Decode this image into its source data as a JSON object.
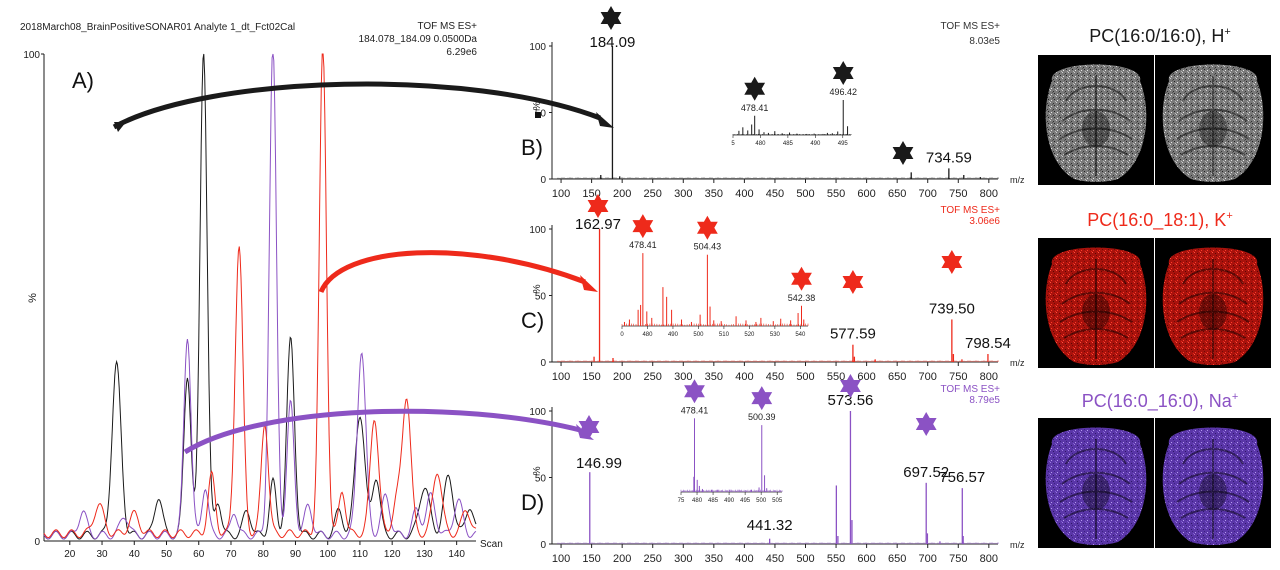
{
  "figure": {
    "labels": {
      "a": "A)",
      "b": "B)",
      "c": "C)",
      "d": "D)"
    },
    "colors": {
      "black": "#1a1a1a",
      "red": "#ee2a1b",
      "purple": "#8b52c4",
      "axis": "#222222"
    }
  },
  "chart_data": [
    {
      "panel": "A",
      "type": "line",
      "header": "2018March08_BrainPositiveSONAR01 Analyte 1_dt_Fct02Cal",
      "info": [
        "TOF MS ES+",
        "184.078_184.09 0.0500Da",
        "6.29e6"
      ],
      "ylabel": "%",
      "xlabel": "Scan",
      "xlim": [
        12,
        146
      ],
      "ylim": [
        0,
        100
      ],
      "xticks": [
        "20",
        "30",
        "40",
        "50",
        "60",
        "70",
        "80",
        "90",
        "100",
        "110",
        "120",
        "130",
        "140"
      ],
      "yticks": [
        "0",
        "100"
      ],
      "series": [
        {
          "color": "black",
          "peaks": [
            [
              34.5,
              35,
              1.4
            ],
            [
              47.5,
              8,
              1.2
            ],
            [
              56.5,
              33,
              1.1
            ],
            [
              61.5,
              100,
              1.1
            ],
            [
              66,
              7,
              1.0
            ],
            [
              75,
              5,
              1.2
            ],
            [
              83,
              11,
              1.0
            ],
            [
              88.5,
              40,
              1.2
            ],
            [
              103.5,
              5,
              1.2
            ],
            [
              110,
              25,
              1.5
            ],
            [
              115,
              12,
              1.2
            ],
            [
              130,
              10,
              1.6
            ],
            [
              137.5,
              12,
              1.5
            ],
            [
              144,
              6,
              1.2
            ]
          ],
          "baseline": 1.2
        },
        {
          "color": "purple",
          "peaks": [
            [
              24,
              5,
              1.2
            ],
            [
              37,
              4,
              1.3
            ],
            [
              56.5,
              41,
              1.1
            ],
            [
              62,
              10,
              1.0
            ],
            [
              71,
              5,
              1.0
            ],
            [
              83,
              100,
              1.1
            ],
            [
              88.5,
              27,
              1.1
            ],
            [
              94,
              6,
              1.2
            ],
            [
              110.5,
              38,
              1.3
            ],
            [
              118,
              8,
              1.3
            ],
            [
              127.5,
              5,
              1.2
            ],
            [
              132,
              8,
              1.4
            ],
            [
              140.5,
              7,
              1.4
            ]
          ],
          "baseline": 1.2
        },
        {
          "color": "red",
          "peaks": [
            [
              29,
              6,
              1.5
            ],
            [
              40,
              4,
              1.5
            ],
            [
              64,
              12,
              1.1
            ],
            [
              72.5,
              59,
              1.2
            ],
            [
              80.5,
              23,
              1.1
            ],
            [
              98.5,
              100,
              1.1
            ],
            [
              104.5,
              9,
              1.0
            ],
            [
              114.5,
              24,
              1.3
            ],
            [
              121.5,
              7,
              1.3
            ],
            [
              124.5,
              28,
              1.3
            ],
            [
              134,
              13,
              1.4
            ],
            [
              143,
              5,
              1.3
            ]
          ],
          "baseline": 1.5
        }
      ]
    },
    {
      "panel": "B",
      "type": "spectrum",
      "info": [
        "TOF MS ES+",
        "8.03e5"
      ],
      "ylabel": "%",
      "xlabel": "m/z",
      "xlim": [
        95,
        815
      ],
      "ylim": [
        0,
        100
      ],
      "xticks": [
        "100",
        "150",
        "200",
        "250",
        "300",
        "350",
        "400",
        "450",
        "500",
        "550",
        "600",
        "650",
        "700",
        "750",
        "800"
      ],
      "yticks": [
        "0",
        "50",
        "100"
      ],
      "peaks": [
        [
          184.09,
          100
        ],
        [
          165,
          3
        ],
        [
          196,
          2
        ],
        [
          673,
          5
        ],
        [
          734.59,
          8
        ],
        [
          759,
          3
        ],
        [
          786,
          1.5
        ]
      ],
      "labels": [
        [
          "184.09",
          184.09,
          null
        ],
        [
          "734.59",
          734.59,
          null
        ]
      ],
      "stars": [
        [
          184.09
        ],
        [
          673
        ]
      ],
      "inset": {
        "xticks": [
          "5",
          "480",
          "485",
          "490",
          "495"
        ],
        "xlim": [
          474,
          498
        ],
        "peaks": [
          [
            475.2,
            12
          ],
          [
            476,
            22
          ],
          [
            477,
            13
          ],
          [
            477.8,
            30
          ],
          [
            478.41,
            55
          ],
          [
            479.3,
            16
          ],
          [
            480.3,
            8
          ],
          [
            481.2,
            6
          ],
          [
            482.5,
            11
          ],
          [
            484,
            5
          ],
          [
            485.5,
            7
          ],
          [
            487,
            4
          ],
          [
            489,
            3
          ],
          [
            490.5,
            4
          ],
          [
            492.3,
            3
          ],
          [
            493.2,
            6
          ],
          [
            494.2,
            5
          ],
          [
            495.3,
            10
          ],
          [
            496.42,
            100
          ],
          [
            497.3,
            25
          ]
        ],
        "labels": [
          [
            "478.41",
            478.41
          ],
          [
            "496.42",
            496.42
          ]
        ]
      }
    },
    {
      "panel": "C",
      "type": "spectrum",
      "info": [
        "TOF MS ES+",
        "3.06e6"
      ],
      "ylabel": "%",
      "xlabel": "m/z",
      "xlim": [
        95,
        815
      ],
      "ylim": [
        0,
        100
      ],
      "xticks": [
        "100",
        "150",
        "200",
        "250",
        "300",
        "350",
        "400",
        "450",
        "500",
        "550",
        "600",
        "650",
        "700",
        "750",
        "800"
      ],
      "yticks": [
        "0",
        "50",
        "100"
      ],
      "peaks": [
        [
          162.97,
          100
        ],
        [
          154,
          4
        ],
        [
          185,
          3
        ],
        [
          577.59,
          13
        ],
        [
          580,
          4
        ],
        [
          739.5,
          32
        ],
        [
          742,
          6
        ],
        [
          798.54,
          6
        ],
        [
          756,
          2
        ],
        [
          614,
          2
        ]
      ],
      "labels": [
        [
          "162.97",
          162.97
        ],
        [
          "577.59",
          577.59
        ],
        [
          "739.50",
          739.5
        ],
        [
          "798.54",
          798.54
        ]
      ],
      "stars": [
        [
          162.97
        ],
        [
          577.59
        ],
        [
          739.5
        ]
      ],
      "inset": {
        "xticks": [
          "0",
          "480",
          "490",
          "500",
          "510",
          "520",
          "530",
          "540"
        ],
        "xlim": [
          470,
          545
        ],
        "peaks": [
          [
            471,
            5
          ],
          [
            473,
            8
          ],
          [
            476.5,
            20
          ],
          [
            477.5,
            26
          ],
          [
            478.41,
            90
          ],
          [
            480,
            18
          ],
          [
            482,
            10
          ],
          [
            486.5,
            48
          ],
          [
            488,
            36
          ],
          [
            490,
            20
          ],
          [
            494,
            8
          ],
          [
            498,
            5
          ],
          [
            501.5,
            14
          ],
          [
            504.43,
            88
          ],
          [
            505.5,
            24
          ],
          [
            507,
            7
          ],
          [
            510,
            6
          ],
          [
            516,
            12
          ],
          [
            520,
            7
          ],
          [
            524,
            5
          ],
          [
            526,
            10
          ],
          [
            531,
            6
          ],
          [
            534,
            9
          ],
          [
            538,
            7
          ],
          [
            541,
            16
          ],
          [
            542.38,
            25
          ],
          [
            543.3,
            8
          ]
        ],
        "labels": [
          [
            "478.41",
            478.41
          ],
          [
            "504.43",
            504.43
          ],
          [
            "542.38",
            542.38
          ]
        ]
      }
    },
    {
      "panel": "D",
      "type": "spectrum",
      "info": [
        "TOF MS ES+",
        "8.79e5"
      ],
      "ylabel": "%",
      "xlabel": "m/z",
      "xlim": [
        95,
        815
      ],
      "ylim": [
        0,
        100
      ],
      "xticks": [
        "100",
        "150",
        "200",
        "250",
        "300",
        "350",
        "400",
        "450",
        "500",
        "550",
        "600",
        "650",
        "700",
        "750",
        "800"
      ],
      "yticks": [
        "0",
        "50",
        "100"
      ],
      "peaks": [
        [
          146.99,
          54
        ],
        [
          441.32,
          4
        ],
        [
          550.5,
          44
        ],
        [
          553,
          6
        ],
        [
          573.56,
          100
        ],
        [
          576,
          18
        ],
        [
          697.52,
          46
        ],
        [
          699.5,
          8
        ],
        [
          756.57,
          42
        ],
        [
          758,
          6
        ],
        [
          720,
          2
        ]
      ],
      "labels": [
        [
          "146.99",
          146.99
        ],
        [
          "441.32",
          441.32
        ],
        [
          "573.56",
          573.56
        ],
        [
          "697.52",
          697.52
        ],
        [
          "756.57",
          756.57
        ]
      ],
      "stars": [
        [
          146.99
        ],
        [
          573.56
        ],
        [
          697.52
        ]
      ],
      "inset": {
        "xticks": [
          "75",
          "480",
          "485",
          "490",
          "495",
          "500",
          "505"
        ],
        "xlim": [
          474,
          507
        ],
        "peaks": [
          [
            478.2,
            20
          ],
          [
            478.41,
            97
          ],
          [
            479.3,
            16
          ],
          [
            480,
            8
          ],
          [
            481,
            4
          ],
          [
            484,
            3
          ],
          [
            486,
            3
          ],
          [
            490,
            3
          ],
          [
            493,
            3
          ],
          [
            497,
            3
          ],
          [
            499.5,
            6
          ],
          [
            500.39,
            88
          ],
          [
            501.3,
            22
          ],
          [
            502,
            5
          ]
        ],
        "labels": [
          [
            "478.41",
            478.41
          ],
          [
            "500.39",
            500.39
          ]
        ]
      }
    }
  ],
  "images": [
    {
      "title": "PC(16:0/16:0), H",
      "sup": "+",
      "color": "black",
      "tone": "gray"
    },
    {
      "title": "PC(16:0_18:1), K",
      "sup": "+",
      "color": "red",
      "tone": "red"
    },
    {
      "title": "PC(16:0_16:0), Na",
      "sup": "+",
      "color": "purple",
      "tone": "purple"
    }
  ]
}
